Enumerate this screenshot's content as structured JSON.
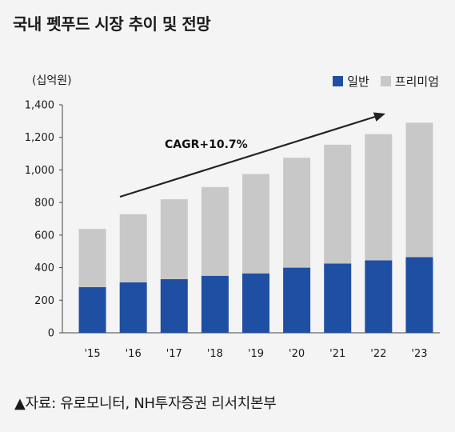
{
  "title": "국내 펫푸드 시장 추이 및 전망",
  "unit_label": "(십억원)",
  "source": "▲자료: 유로모니터, NH투자증권 리서치본부",
  "colors": {
    "general": "#1f4fa3",
    "premium": "#c8c8c8",
    "background": "#f4f4f4"
  },
  "chart_data": {
    "type": "bar",
    "stacked": true,
    "categories": [
      "'15",
      "'16",
      "'17",
      "'18",
      "'19",
      "'20",
      "'21",
      "'22",
      "'23"
    ],
    "series": [
      {
        "name": "일반",
        "values": [
          280,
          310,
          330,
          350,
          365,
          400,
          425,
          445,
          465
        ]
      },
      {
        "name": "프리미엄",
        "values": [
          358,
          418,
          490,
          545,
          610,
          675,
          730,
          775,
          825
        ]
      }
    ],
    "ylim": [
      0,
      1400
    ],
    "yticks": [
      "0",
      "200",
      "400",
      "600",
      "800",
      "1,000",
      "1,200",
      "1,400"
    ],
    "ytick_values": [
      0,
      200,
      400,
      600,
      800,
      1000,
      1200,
      1400
    ],
    "annotation": "CAGR+10.7%",
    "legend": "top-right",
    "grid": false
  }
}
